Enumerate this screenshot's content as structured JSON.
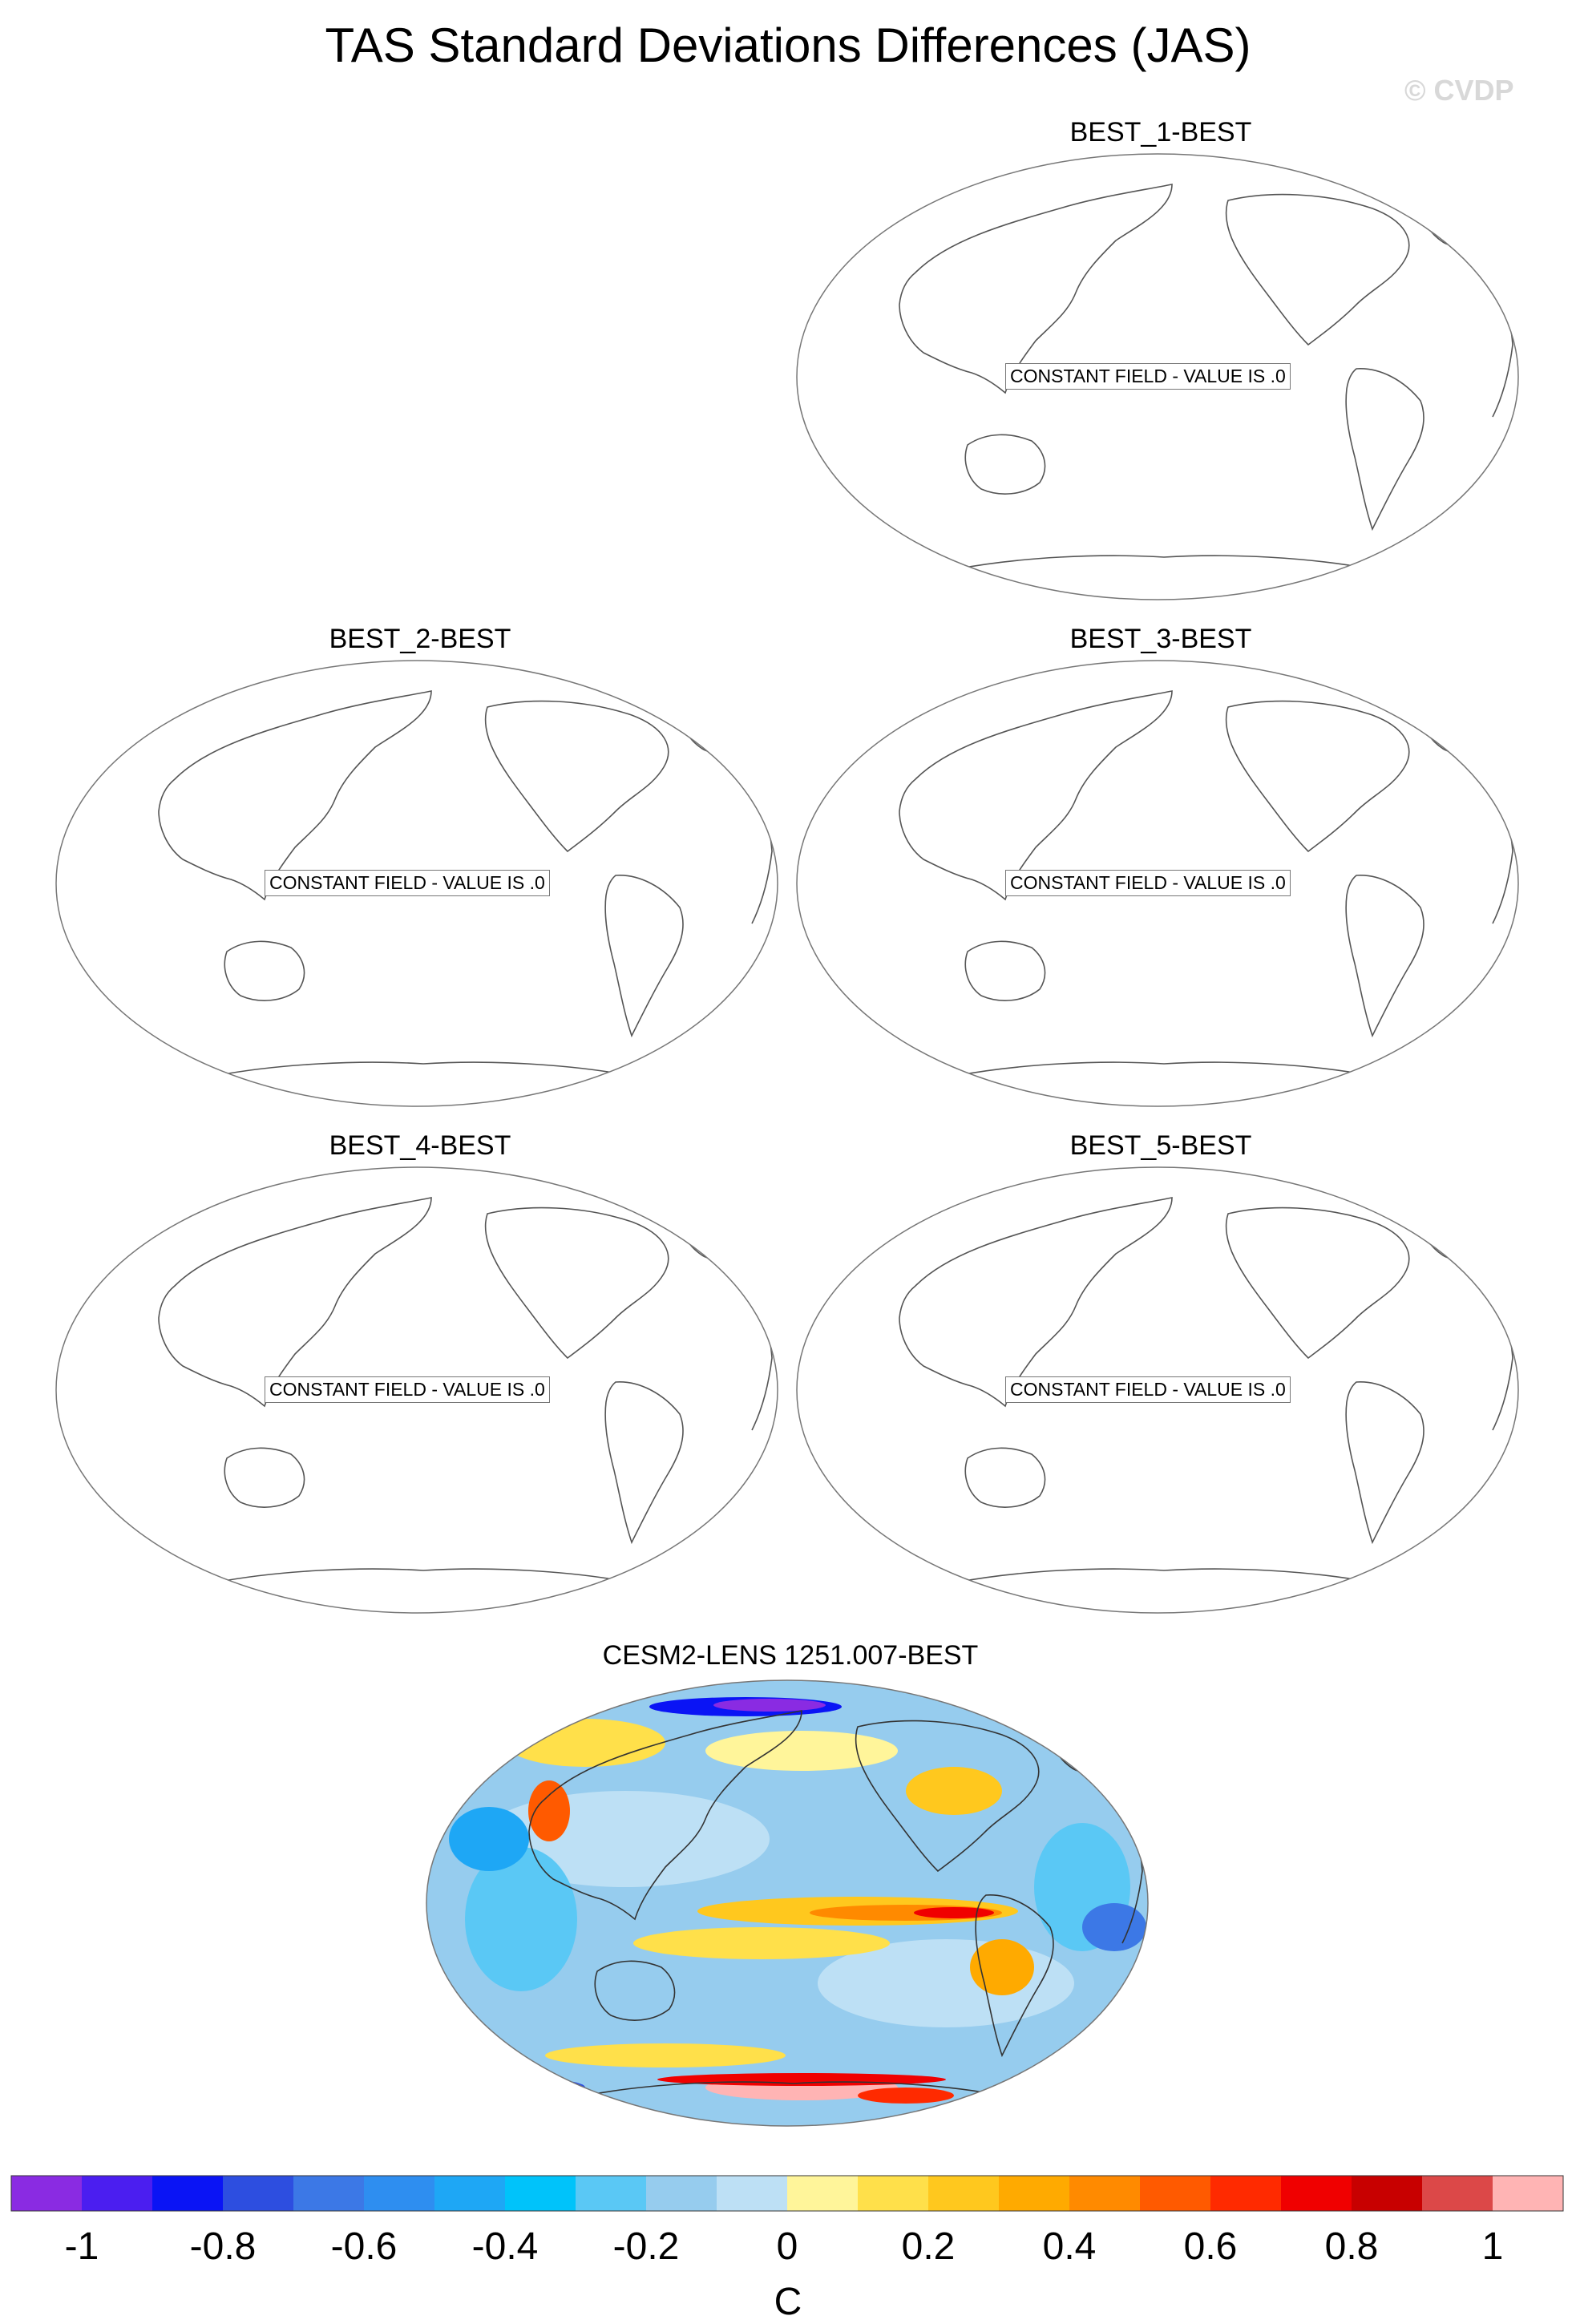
{
  "title": "TAS Standard Deviations Differences (JAS)",
  "watermark": "© CVDP",
  "constant_note": "CONSTANT FIELD - VALUE IS .0",
  "chart_data": {
    "type": "heatmap",
    "title": "TAS Standard Deviations Differences (JAS)",
    "panels": [
      {
        "name": "BEST_1-BEST",
        "constant": true,
        "value": 0.0
      },
      {
        "name": "BEST_2-BEST",
        "constant": true,
        "value": 0.0
      },
      {
        "name": "BEST_3-BEST",
        "constant": true,
        "value": 0.0
      },
      {
        "name": "BEST_4-BEST",
        "constant": true,
        "value": 0.0
      },
      {
        "name": "BEST_5-BEST",
        "constant": true,
        "value": 0.0
      },
      {
        "name": "CESM2-LENS 1251.007-BEST",
        "constant": false
      }
    ],
    "colorbar": {
      "unit": "C",
      "range": [
        -1.1,
        1.1
      ],
      "levels": [
        -1,
        -0.9,
        -0.8,
        -0.7,
        -0.6,
        -0.5,
        -0.4,
        -0.3,
        -0.2,
        -0.1,
        0,
        0.1,
        0.2,
        0.3,
        0.4,
        0.5,
        0.6,
        0.7,
        0.8,
        0.9,
        1
      ],
      "tick_labels": [
        "-1",
        "-0.8",
        "-0.6",
        "-0.4",
        "-0.2",
        "0",
        "0.2",
        "0.4",
        "0.6",
        "0.8",
        "1"
      ],
      "colors": [
        "#8a2be2",
        "#4b1ef0",
        "#0a14f5",
        "#2d4ee0",
        "#3c78e6",
        "#2e8ef0",
        "#1ea7f5",
        "#00c3fa",
        "#5ac8f5",
        "#96ccee",
        "#bde0f5",
        "#fff59a",
        "#ffe04a",
        "#ffc81e",
        "#ffaa00",
        "#ff8a00",
        "#ff5a00",
        "#ff2a00",
        "#f00000",
        "#c80000",
        "#dc4848",
        "#ffb4b4"
      ]
    }
  }
}
